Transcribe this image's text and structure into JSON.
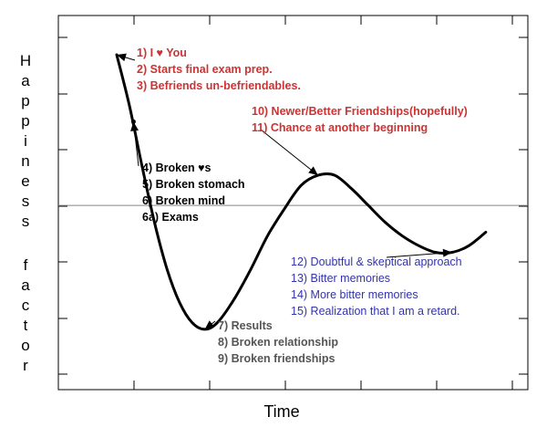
{
  "chart_data": {
    "type": "line",
    "title": "",
    "xlabel": "Time",
    "ylabel": "Happiness factor",
    "ylabel_words": [
      "Happiness",
      "factor"
    ],
    "grid": false,
    "ylim": [
      0,
      10
    ],
    "xlim": [
      0,
      10
    ],
    "baseline": 5.5,
    "series": [
      {
        "points": [
          [
            0.5,
            10.0
          ],
          [
            0.8,
            8.5
          ],
          [
            1.1,
            6.7
          ],
          [
            1.4,
            5.0
          ],
          [
            1.7,
            3.6
          ],
          [
            2.0,
            2.6
          ],
          [
            2.3,
            2.0
          ],
          [
            2.6,
            1.8
          ],
          [
            2.9,
            2.0
          ],
          [
            3.3,
            2.7
          ],
          [
            3.7,
            3.6
          ],
          [
            4.1,
            4.6
          ],
          [
            4.5,
            5.4
          ],
          [
            4.9,
            6.1
          ],
          [
            5.3,
            6.4
          ],
          [
            5.7,
            6.4
          ],
          [
            6.1,
            6.0
          ],
          [
            6.5,
            5.5
          ],
          [
            6.9,
            5.0
          ],
          [
            7.3,
            4.6
          ],
          [
            7.7,
            4.3
          ],
          [
            8.1,
            4.1
          ],
          [
            8.5,
            4.1
          ],
          [
            8.9,
            4.3
          ],
          [
            9.3,
            4.7
          ]
        ]
      }
    ],
    "annotations": [
      {
        "color": "#cc3333",
        "style": "bold",
        "point": [
          0.5,
          10.0
        ],
        "lines": [
          "1) I ♥ You",
          "2) Starts final exam prep.",
          "3) Befriends un-befriendables."
        ]
      },
      {
        "color": "#000000",
        "style": "bold",
        "point": [
          0.9,
          8.0
        ],
        "lines": [
          "4) Broken ♥s",
          "5) Broken stomach",
          "6) Broken mind",
          "6a) Exams"
        ]
      },
      {
        "color": "#555555",
        "style": "bold",
        "point": [
          2.6,
          1.8
        ],
        "lines": [
          "7) Results",
          "8) Broken relationship",
          "9) Broken friendships"
        ]
      },
      {
        "color": "#cc3333",
        "style": "bold",
        "point": [
          5.3,
          6.4
        ],
        "lines": [
          "10) Newer/Better Friendships(hopefully)",
          "11) Chance at another beginning"
        ]
      },
      {
        "color": "#3333aa",
        "style": "normal",
        "point": [
          8.5,
          4.1
        ],
        "lines": [
          "12) Doubtful & skeptical approach",
          "13) Bitter memories",
          "14) More bitter memories",
          "15) Realization that I am a retard."
        ]
      }
    ]
  }
}
